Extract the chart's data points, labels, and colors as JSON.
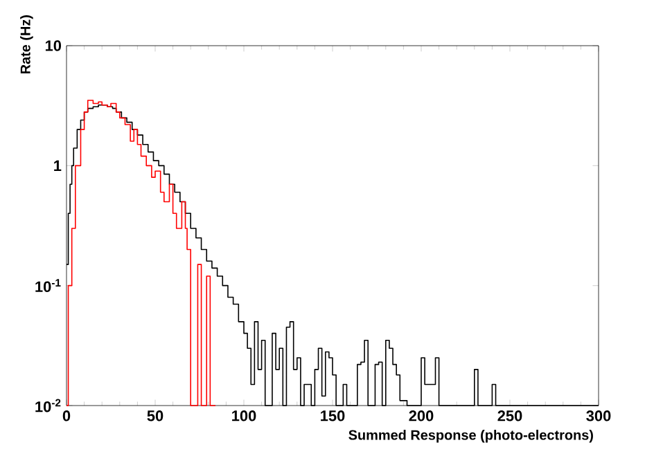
{
  "chart_data": {
    "type": "step",
    "xlabel": "Summed Response (photo-electrons)",
    "ylabel": "Rate (Hz)",
    "log": "y",
    "xlim": [
      0,
      300
    ],
    "xticks": [
      0,
      50,
      100,
      150,
      200,
      250,
      300
    ],
    "ylim": [
      0.01,
      10
    ],
    "yticks": [
      {
        "value": 0.01,
        "label": "10$^{-2}$"
      },
      {
        "value": 0.1,
        "label": "10$^{-1}$"
      },
      1,
      10
    ],
    "series": [
      {
        "color": "#000000",
        "x": [
          0,
          1,
          2,
          3,
          4,
          6,
          8,
          10,
          12,
          15,
          18,
          20,
          23,
          26,
          28,
          31,
          34,
          37,
          40,
          43,
          46,
          49,
          52,
          55,
          58,
          61,
          64,
          67,
          70,
          73,
          76,
          79,
          82,
          85,
          88,
          91,
          94,
          97,
          100,
          102,
          104,
          106,
          108,
          110,
          112,
          114,
          116,
          118,
          120,
          122,
          124,
          126,
          128,
          130,
          132,
          134,
          136,
          138,
          140,
          142,
          144,
          146,
          148,
          150,
          152,
          154,
          156,
          158,
          160,
          162,
          164,
          166,
          168,
          170,
          172,
          174,
          176,
          178,
          180,
          182,
          184,
          186,
          188,
          190,
          192,
          200,
          202,
          208,
          210,
          212,
          230,
          232,
          240,
          242,
          258,
          260,
          270,
          272,
          298,
          300
        ],
        "values": [
          0.15,
          0.4,
          0.7,
          1.0,
          1.4,
          2.0,
          2.4,
          2.8,
          3.0,
          3.1,
          3.2,
          3.2,
          3.1,
          3.0,
          2.8,
          2.5,
          2.3,
          2.0,
          1.8,
          1.5,
          1.3,
          1.1,
          1.0,
          0.85,
          0.7,
          0.6,
          0.5,
          0.4,
          0.3,
          0.25,
          0.2,
          0.16,
          0.14,
          0.12,
          0.1,
          0.08,
          0.07,
          0.05,
          0.04,
          0.03,
          0.015,
          0.05,
          0.02,
          0.035,
          0.01,
          0.01,
          0.04,
          0.02,
          0.03,
          0.01,
          0.045,
          0.05,
          0.02,
          0.025,
          0.01,
          0.015,
          0.015,
          0.01,
          0.02,
          0.03,
          0.012,
          0.028,
          0.025,
          0.018,
          0.01,
          0.01,
          0.015,
          0.01,
          0.01,
          0.01,
          0.022,
          0.023,
          0.035,
          0.01,
          0.01,
          0.022,
          0.023,
          0.01,
          0.035,
          0.03,
          0.022,
          0.018,
          0.011,
          0.011,
          0.01,
          0.025,
          0.015,
          0.025,
          0.01,
          0.01,
          0.02,
          0.01,
          0.015,
          0.01,
          0.01,
          0.01,
          0.01,
          0.01,
          0.01,
          0.01
        ]
      },
      {
        "color": "#ff0000",
        "x": [
          0,
          1,
          3,
          5,
          8,
          10,
          12,
          15,
          18,
          20,
          23,
          25,
          28,
          30,
          33,
          36,
          38,
          40,
          42,
          45,
          48,
          50,
          53,
          55,
          58,
          60,
          62,
          65,
          67,
          68,
          70,
          74,
          76,
          79,
          81,
          84
        ],
        "values": [
          0.01,
          0.1,
          0.3,
          1.0,
          2.0,
          2.8,
          3.5,
          3.3,
          3.4,
          3.2,
          3.1,
          3.3,
          2.8,
          2.5,
          2.2,
          1.6,
          2.0,
          1.5,
          1.2,
          1.0,
          0.8,
          0.9,
          0.6,
          0.5,
          0.7,
          0.4,
          0.3,
          0.5,
          0.3,
          0.2,
          0.01,
          0.15,
          0.01,
          0.12,
          0.01,
          0.01
        ]
      }
    ]
  }
}
